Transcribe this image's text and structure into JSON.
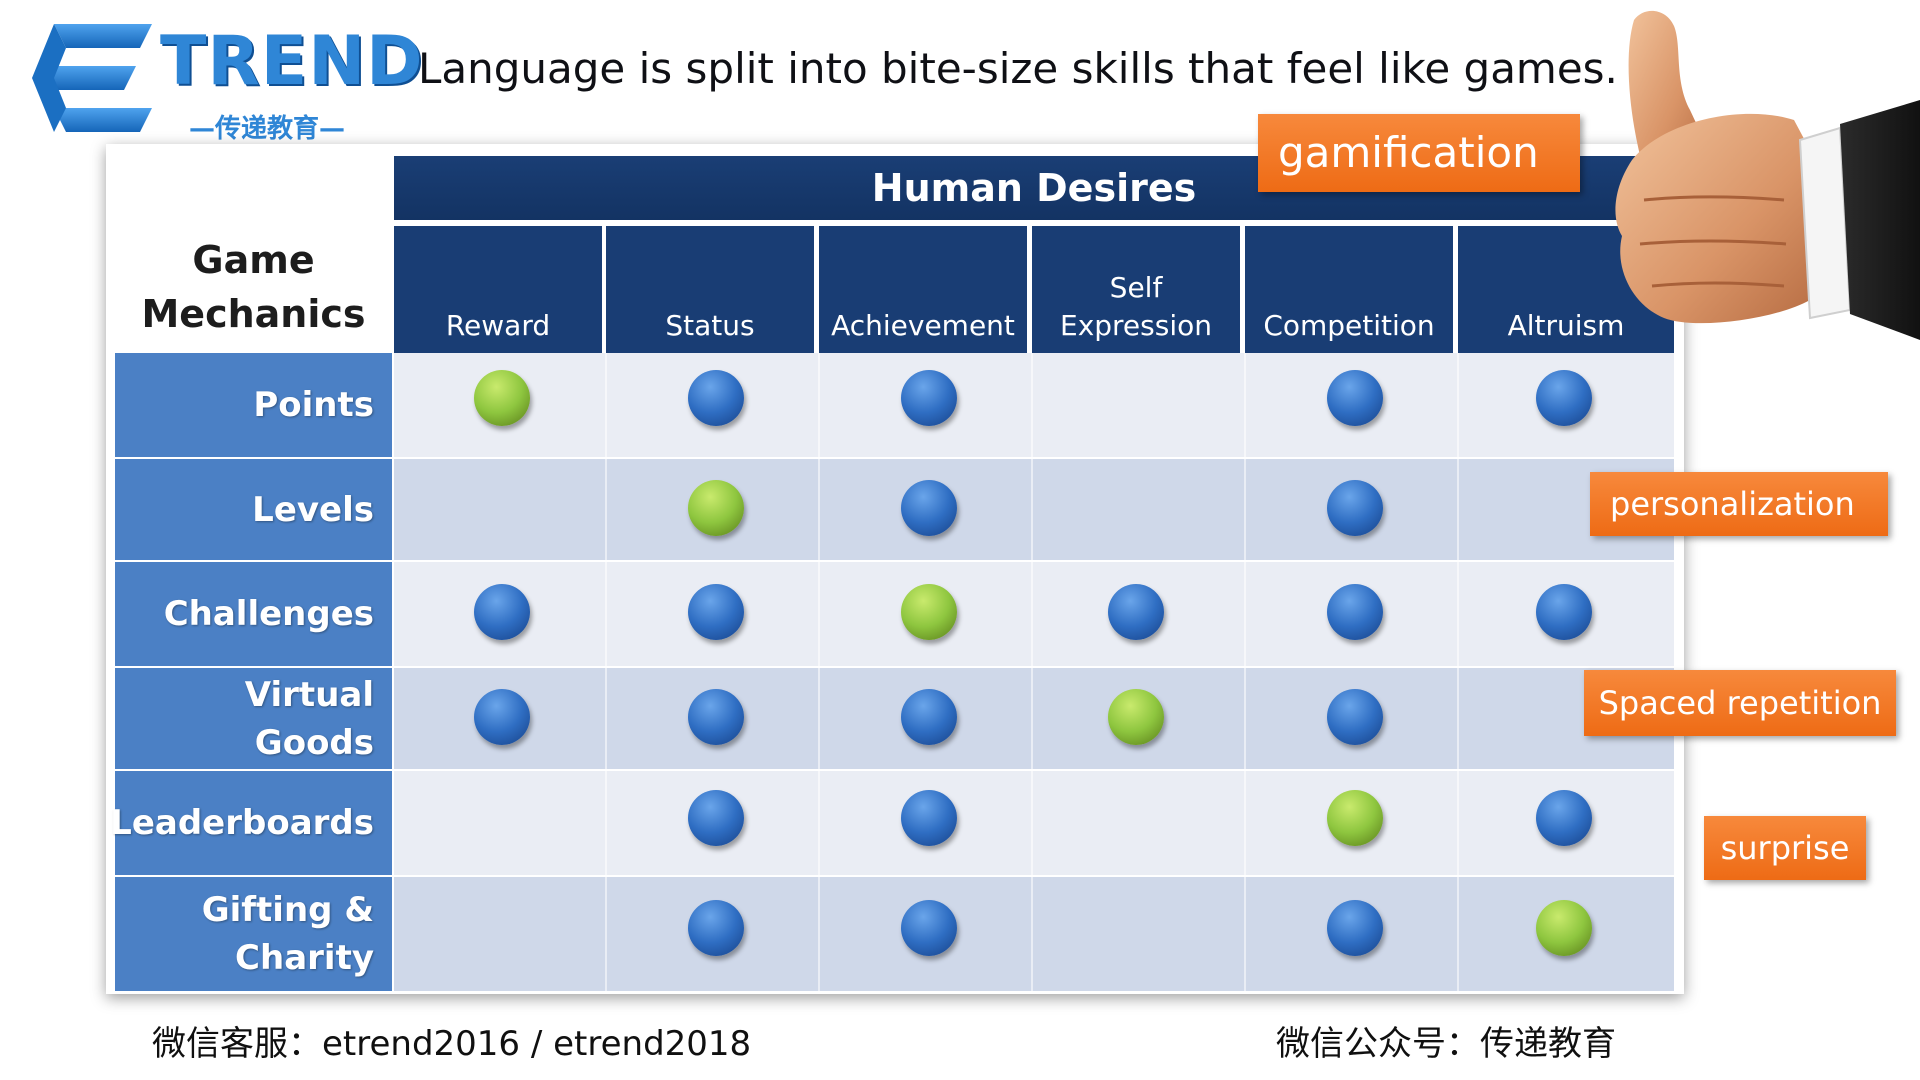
{
  "logo": {
    "brand": "TREND",
    "subtitle": "—传递教育—"
  },
  "headline": "Language is split into bite-size skills that feel like games.",
  "table": {
    "corner_label_line1": "Game",
    "corner_label_line2": "Mechanics",
    "group_header": "Human Desires",
    "columns": [
      {
        "line1": "",
        "line2": "Reward"
      },
      {
        "line1": "",
        "line2": "Status"
      },
      {
        "line1": "",
        "line2": "Achievement"
      },
      {
        "line1": "Self",
        "line2": "Expression"
      },
      {
        "line1": "",
        "line2": "Competition"
      },
      {
        "line1": "",
        "line2": "Altruism"
      }
    ],
    "rows": [
      {
        "label_line1": "Points",
        "label_line2": "",
        "cells": [
          "green",
          "blue",
          "blue",
          "",
          "blue",
          "blue"
        ]
      },
      {
        "label_line1": "Levels",
        "label_line2": "",
        "cells": [
          "",
          "green",
          "blue",
          "",
          "blue",
          ""
        ]
      },
      {
        "label_line1": "Challenges",
        "label_line2": "",
        "cells": [
          "blue",
          "blue",
          "green",
          "blue",
          "blue",
          "blue"
        ]
      },
      {
        "label_line1": "Virtual Goods",
        "label_line2": "",
        "cells": [
          "blue",
          "blue",
          "blue",
          "green",
          "blue",
          ""
        ]
      },
      {
        "label_line1": "Leaderboards",
        "label_line2": "",
        "cells": [
          "",
          "blue",
          "blue",
          "",
          "green",
          "blue"
        ]
      },
      {
        "label_line1": "Gifting &",
        "label_line2": "Charity",
        "cells": [
          "",
          "blue",
          "blue",
          "",
          "blue",
          "green"
        ]
      }
    ]
  },
  "tags": {
    "gamification": "gamification",
    "personalization": "personalization",
    "spaced_repetition": "Spaced repetition",
    "surprise": "surprise"
  },
  "footer": {
    "left": "微信客服：etrend2016 / etrend2018",
    "right": "微信公众号：传递教育"
  },
  "colors": {
    "header_navy": "#193d74",
    "row_header_blue": "#4b80c5",
    "band_light": "#eaedf4",
    "band_dark": "#cfd8e9",
    "tag_orange": "#f07a24",
    "dot_blue": "#2f6ec3",
    "dot_green": "#8ec63f",
    "logo_blue": "#2f86d6"
  },
  "icons": {
    "logo_mark": "trend-e-logo-icon",
    "thumbs_up": "thumbs-up-hand-icon"
  }
}
